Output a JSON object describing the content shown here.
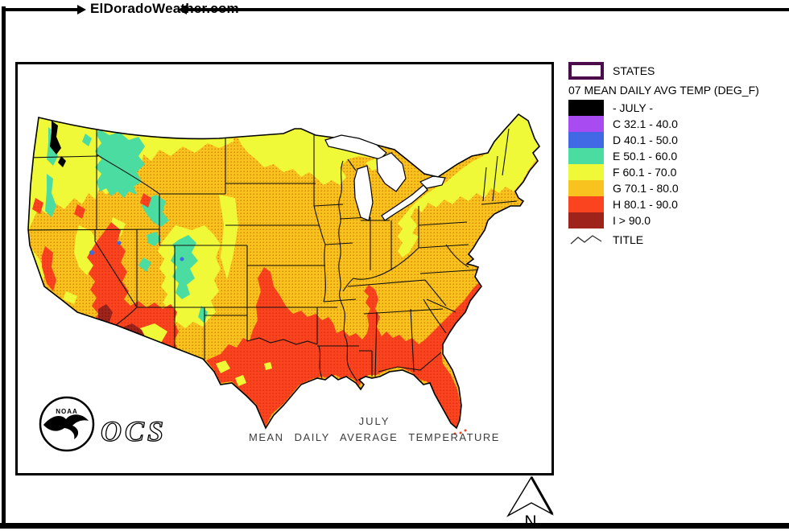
{
  "header": {
    "site_name": "ElDoradoWeather.com"
  },
  "legend": {
    "states_label": "STATES",
    "states_border_color": "#4A0D4A",
    "title": "07 MEAN DAILY AVG TEMP (DEG_F)",
    "entries": [
      {
        "label": "- JULY -",
        "color": "#000000"
      },
      {
        "label": "C 32.1 - 40.0",
        "color": "#A84BF0"
      },
      {
        "label": "D 40.1 - 50.0",
        "color": "#4169E6"
      },
      {
        "label": "E 50.1 - 60.0",
        "color": "#4BDCA2"
      },
      {
        "label": "F 60.1 - 70.0",
        "color": "#EFF937"
      },
      {
        "label": "G 70.1 - 80.0",
        "color": "#F8C21F"
      },
      {
        "label": "H 80.1 - 90.0",
        "color": "#FA431F"
      },
      {
        "label": "I > 90.0",
        "color": "#9E231B"
      }
    ],
    "title_line_label": "TITLE"
  },
  "map": {
    "caption_line1": "JULY",
    "caption_line2": "MEAN DAILY AVERAGE TEMPERATURE",
    "noaa_label": "NOAA",
    "ocs_label": "OCS",
    "compass_label": "N"
  }
}
